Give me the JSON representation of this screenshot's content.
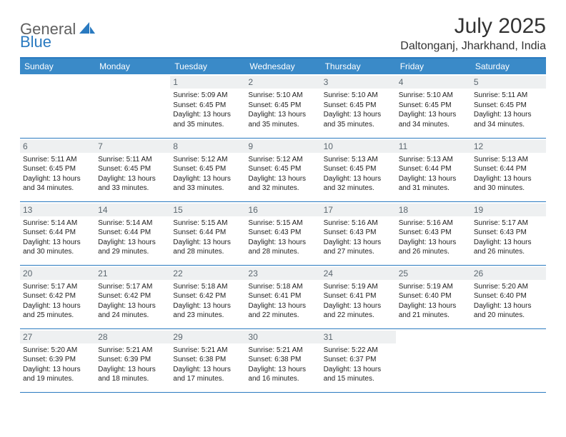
{
  "logo": {
    "general": "General",
    "blue": "Blue"
  },
  "title": "July 2025",
  "location": "Daltonganj, Jharkhand, India",
  "colors": {
    "header_bg": "#3a8ac8",
    "header_text": "#ffffff",
    "border": "#2a7ac0",
    "daynum_bg": "#eef0f1",
    "daynum_text": "#5c676f",
    "body_text": "#222222",
    "logo_gray": "#606060",
    "logo_blue": "#2a7ac0"
  },
  "weekdays": [
    "Sunday",
    "Monday",
    "Tuesday",
    "Wednesday",
    "Thursday",
    "Friday",
    "Saturday"
  ],
  "weeks": [
    [
      null,
      null,
      {
        "n": "1",
        "sr": "5:09 AM",
        "ss": "6:45 PM",
        "dl": "13 hours and 35 minutes."
      },
      {
        "n": "2",
        "sr": "5:10 AM",
        "ss": "6:45 PM",
        "dl": "13 hours and 35 minutes."
      },
      {
        "n": "3",
        "sr": "5:10 AM",
        "ss": "6:45 PM",
        "dl": "13 hours and 35 minutes."
      },
      {
        "n": "4",
        "sr": "5:10 AM",
        "ss": "6:45 PM",
        "dl": "13 hours and 34 minutes."
      },
      {
        "n": "5",
        "sr": "5:11 AM",
        "ss": "6:45 PM",
        "dl": "13 hours and 34 minutes."
      }
    ],
    [
      {
        "n": "6",
        "sr": "5:11 AM",
        "ss": "6:45 PM",
        "dl": "13 hours and 34 minutes."
      },
      {
        "n": "7",
        "sr": "5:11 AM",
        "ss": "6:45 PM",
        "dl": "13 hours and 33 minutes."
      },
      {
        "n": "8",
        "sr": "5:12 AM",
        "ss": "6:45 PM",
        "dl": "13 hours and 33 minutes."
      },
      {
        "n": "9",
        "sr": "5:12 AM",
        "ss": "6:45 PM",
        "dl": "13 hours and 32 minutes."
      },
      {
        "n": "10",
        "sr": "5:13 AM",
        "ss": "6:45 PM",
        "dl": "13 hours and 32 minutes."
      },
      {
        "n": "11",
        "sr": "5:13 AM",
        "ss": "6:44 PM",
        "dl": "13 hours and 31 minutes."
      },
      {
        "n": "12",
        "sr": "5:13 AM",
        "ss": "6:44 PM",
        "dl": "13 hours and 30 minutes."
      }
    ],
    [
      {
        "n": "13",
        "sr": "5:14 AM",
        "ss": "6:44 PM",
        "dl": "13 hours and 30 minutes."
      },
      {
        "n": "14",
        "sr": "5:14 AM",
        "ss": "6:44 PM",
        "dl": "13 hours and 29 minutes."
      },
      {
        "n": "15",
        "sr": "5:15 AM",
        "ss": "6:44 PM",
        "dl": "13 hours and 28 minutes."
      },
      {
        "n": "16",
        "sr": "5:15 AM",
        "ss": "6:43 PM",
        "dl": "13 hours and 28 minutes."
      },
      {
        "n": "17",
        "sr": "5:16 AM",
        "ss": "6:43 PM",
        "dl": "13 hours and 27 minutes."
      },
      {
        "n": "18",
        "sr": "5:16 AM",
        "ss": "6:43 PM",
        "dl": "13 hours and 26 minutes."
      },
      {
        "n": "19",
        "sr": "5:17 AM",
        "ss": "6:43 PM",
        "dl": "13 hours and 26 minutes."
      }
    ],
    [
      {
        "n": "20",
        "sr": "5:17 AM",
        "ss": "6:42 PM",
        "dl": "13 hours and 25 minutes."
      },
      {
        "n": "21",
        "sr": "5:17 AM",
        "ss": "6:42 PM",
        "dl": "13 hours and 24 minutes."
      },
      {
        "n": "22",
        "sr": "5:18 AM",
        "ss": "6:42 PM",
        "dl": "13 hours and 23 minutes."
      },
      {
        "n": "23",
        "sr": "5:18 AM",
        "ss": "6:41 PM",
        "dl": "13 hours and 22 minutes."
      },
      {
        "n": "24",
        "sr": "5:19 AM",
        "ss": "6:41 PM",
        "dl": "13 hours and 22 minutes."
      },
      {
        "n": "25",
        "sr": "5:19 AM",
        "ss": "6:40 PM",
        "dl": "13 hours and 21 minutes."
      },
      {
        "n": "26",
        "sr": "5:20 AM",
        "ss": "6:40 PM",
        "dl": "13 hours and 20 minutes."
      }
    ],
    [
      {
        "n": "27",
        "sr": "5:20 AM",
        "ss": "6:39 PM",
        "dl": "13 hours and 19 minutes."
      },
      {
        "n": "28",
        "sr": "5:21 AM",
        "ss": "6:39 PM",
        "dl": "13 hours and 18 minutes."
      },
      {
        "n": "29",
        "sr": "5:21 AM",
        "ss": "6:38 PM",
        "dl": "13 hours and 17 minutes."
      },
      {
        "n": "30",
        "sr": "5:21 AM",
        "ss": "6:38 PM",
        "dl": "13 hours and 16 minutes."
      },
      {
        "n": "31",
        "sr": "5:22 AM",
        "ss": "6:37 PM",
        "dl": "13 hours and 15 minutes."
      },
      null,
      null
    ]
  ],
  "labels": {
    "sunrise": "Sunrise:",
    "sunset": "Sunset:",
    "daylight": "Daylight:"
  }
}
